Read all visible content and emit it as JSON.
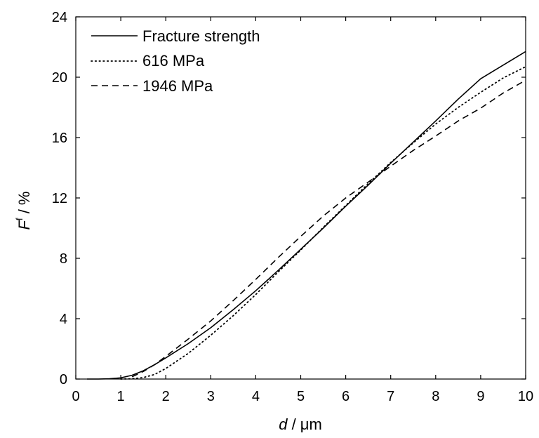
{
  "chart_data": {
    "type": "line",
    "title": "",
    "xlabel": {
      "var": "d",
      "unit": " / μm"
    },
    "ylabel": {
      "var": "F",
      "sup": "f",
      "unit": " / %"
    },
    "xlim": [
      0,
      10
    ],
    "ylim": [
      0,
      24
    ],
    "xticks": [
      0,
      1,
      2,
      3,
      4,
      5,
      6,
      7,
      8,
      9,
      10
    ],
    "yticks": [
      0,
      4,
      8,
      12,
      16,
      20,
      24
    ],
    "grid": false,
    "legend_position": "top-left",
    "series": [
      {
        "name": "Fracture strength",
        "style": "solid",
        "x": [
          0.25,
          0.5,
          0.75,
          1.0,
          1.25,
          1.5,
          1.75,
          2.0,
          2.5,
          3.0,
          3.5,
          4.0,
          4.5,
          5.0,
          5.5,
          6.0,
          6.5,
          7.0,
          7.5,
          8.0,
          8.5,
          9.0,
          9.5,
          10.0
        ],
        "y": [
          0.0,
          0.0,
          0.02,
          0.08,
          0.25,
          0.55,
          0.95,
          1.4,
          2.35,
          3.4,
          4.6,
          5.85,
          7.2,
          8.6,
          10.0,
          11.45,
          12.85,
          14.3,
          15.7,
          17.1,
          18.55,
          19.9,
          20.8,
          21.7
        ]
      },
      {
        "name": "616 MPa",
        "style": "dotted",
        "x": [
          1.0,
          1.25,
          1.5,
          1.75,
          2.0,
          2.5,
          3.0,
          3.5,
          4.0,
          4.5,
          5.0,
          5.5,
          6.0,
          6.5,
          7.0,
          7.5,
          8.0,
          8.5,
          9.0,
          9.5,
          10.0
        ],
        "y": [
          0.0,
          0.02,
          0.1,
          0.3,
          0.7,
          1.7,
          2.9,
          4.2,
          5.6,
          7.1,
          8.55,
          10.05,
          11.5,
          12.95,
          14.35,
          15.65,
          16.9,
          18.0,
          19.0,
          19.95,
          20.7
        ]
      },
      {
        "name": "1946 MPa",
        "style": "dashed",
        "x": [
          1.25,
          1.5,
          1.75,
          2.0,
          2.5,
          3.0,
          3.5,
          4.0,
          4.5,
          5.0,
          5.5,
          6.0,
          6.5,
          7.0,
          7.5,
          8.0,
          8.5,
          9.0,
          9.5,
          10.0
        ],
        "y": [
          0.15,
          0.5,
          0.95,
          1.5,
          2.65,
          3.85,
          5.2,
          6.6,
          8.05,
          9.45,
          10.8,
          12.0,
          13.05,
          14.1,
          15.15,
          16.1,
          17.1,
          17.95,
          18.95,
          19.8
        ]
      }
    ]
  }
}
